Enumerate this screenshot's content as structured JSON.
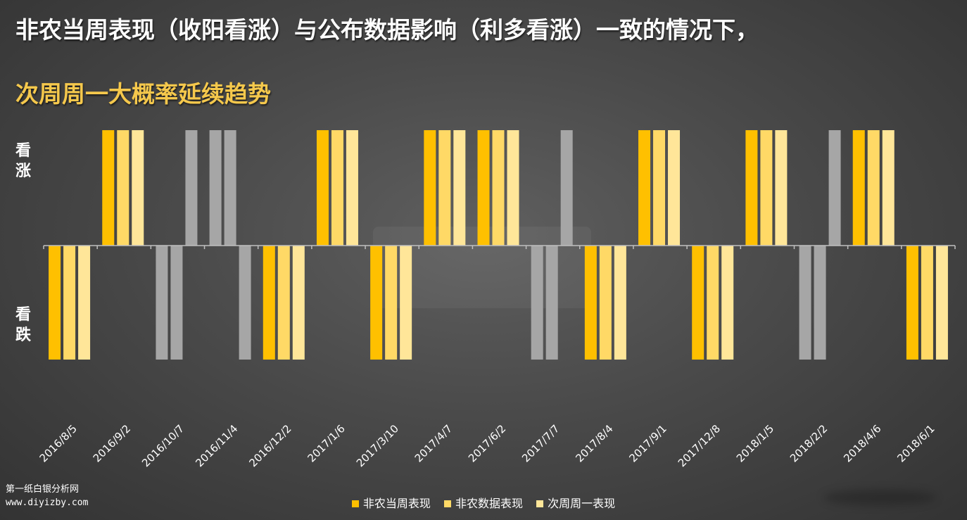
{
  "title": "非农当周表现（收阳看涨）与公布数据影响（利多看涨）一致的情况下，",
  "subtitle": "次周周一大概率延续趋势",
  "y_labels": {
    "up": "看涨",
    "down": "看跌"
  },
  "colors": {
    "series1": "#ffc000",
    "series2": "#ffd966",
    "series3": "#ffe699",
    "inconsistent": "#a6a6a6",
    "axis": "#bfbfbf"
  },
  "chart_data": {
    "type": "bar",
    "ylim": [
      -1,
      1
    ],
    "categories": [
      "2016/8/5",
      "2016/9/2",
      "2016/10/7",
      "2016/11/4",
      "2016/12/2",
      "2017/1/6",
      "2017/3/10",
      "2017/4/7",
      "2017/6/2",
      "2017/7/7",
      "2017/8/4",
      "2017/9/1",
      "2017/12/8",
      "2018/1/5",
      "2018/2/2",
      "2018/4/6",
      "2018/6/1"
    ],
    "series": [
      {
        "name": "非农当周表现",
        "values": [
          -1,
          1,
          -1,
          1,
          -1,
          1,
          -1,
          1,
          1,
          -1,
          -1,
          1,
          -1,
          1,
          -1,
          1,
          -1
        ]
      },
      {
        "name": "非农数据表现",
        "values": [
          -1,
          1,
          -1,
          1,
          -1,
          1,
          -1,
          1,
          1,
          -1,
          -1,
          1,
          -1,
          1,
          -1,
          1,
          -1
        ]
      },
      {
        "name": "次周周一表现",
        "values": [
          -1,
          1,
          1,
          -1,
          -1,
          1,
          -1,
          1,
          1,
          1,
          -1,
          1,
          -1,
          1,
          1,
          1,
          -1
        ]
      }
    ],
    "inconsistent_categories": [
      "2016/10/7",
      "2016/11/4",
      "2017/7/7",
      "2018/2/2"
    ]
  },
  "footer": {
    "line1": "第一纸白银分析网",
    "line2": "www.diyizby.com"
  }
}
